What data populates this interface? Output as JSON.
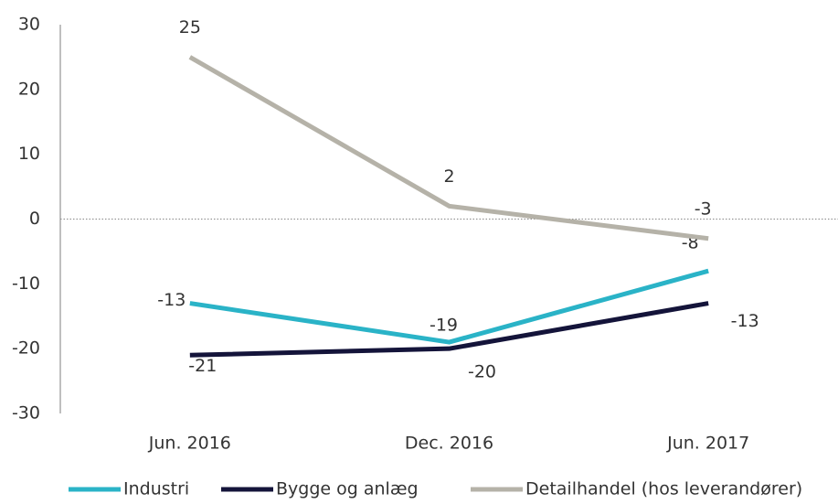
{
  "chart_data": {
    "type": "line",
    "categories": [
      "Jun. 2016",
      "Dec. 2016",
      "Jun. 2017"
    ],
    "series": [
      {
        "name": "Industri",
        "color": "#2ab3c7",
        "values": [
          -13,
          -19,
          -8
        ]
      },
      {
        "name": "Bygge og anlæg",
        "color": "#14143a",
        "values": [
          -21,
          -20,
          -13
        ]
      },
      {
        "name": "Detailhandel (hos leverandører)",
        "color": "#b5b2a8",
        "values": [
          25,
          2,
          -3
        ]
      }
    ],
    "ylim": [
      -30,
      30
    ],
    "yticks": [
      -30,
      -20,
      -10,
      0,
      10,
      20,
      30
    ],
    "grid": false,
    "legend": "bottom"
  }
}
